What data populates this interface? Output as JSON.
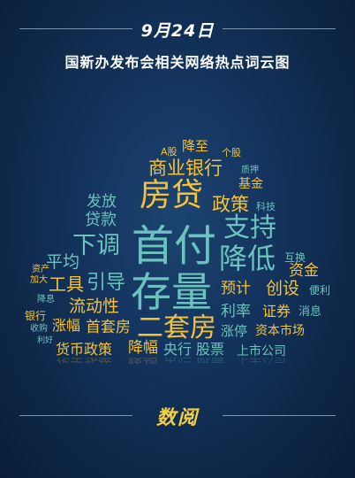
{
  "header": {
    "date": "9月24日",
    "title": "国新办发布会相关网络热点词云图"
  },
  "word_cloud": [
    {
      "text": "首付",
      "color": "teal"
    },
    {
      "text": "存量",
      "color": "teal"
    },
    {
      "text": "房贷",
      "color": "yellow"
    },
    {
      "text": "下调",
      "color": "teal"
    },
    {
      "text": "支持",
      "color": "teal"
    },
    {
      "text": "降低",
      "color": "teal"
    },
    {
      "text": "二套房",
      "color": "yellow"
    },
    {
      "text": "商业银行",
      "color": "yellow"
    },
    {
      "text": "政策",
      "color": "yellow"
    },
    {
      "text": "引导",
      "color": "teal"
    },
    {
      "text": "工具",
      "color": "yellow"
    },
    {
      "text": "平均",
      "color": "teal"
    },
    {
      "text": "发放",
      "color": "teal"
    },
    {
      "text": "贷款",
      "color": "teal"
    },
    {
      "text": "流动性",
      "color": "yellow"
    },
    {
      "text": "首套房",
      "color": "yellow"
    },
    {
      "text": "涨幅",
      "color": "yellow"
    },
    {
      "text": "降幅",
      "color": "yellow"
    },
    {
      "text": "货币政策",
      "color": "yellow"
    },
    {
      "text": "央行",
      "color": "teal"
    },
    {
      "text": "股票",
      "color": "teal"
    },
    {
      "text": "上市公司",
      "color": "teal"
    },
    {
      "text": "资本市场",
      "color": "yellow"
    },
    {
      "text": "涨停",
      "color": "teal"
    },
    {
      "text": "利率",
      "color": "teal"
    },
    {
      "text": "证券",
      "color": "yellow"
    },
    {
      "text": "消息",
      "color": "teal"
    },
    {
      "text": "预计",
      "color": "yellow"
    },
    {
      "text": "创设",
      "color": "yellow"
    },
    {
      "text": "资金",
      "color": "yellow"
    },
    {
      "text": "便利",
      "color": "teal"
    },
    {
      "text": "互换",
      "color": "teal"
    },
    {
      "text": "基金",
      "color": "yellow"
    },
    {
      "text": "科技",
      "color": "teal"
    },
    {
      "text": "质押",
      "color": "teal"
    },
    {
      "text": "个股",
      "color": "yellow"
    },
    {
      "text": "降至",
      "color": "yellow"
    },
    {
      "text": "A股",
      "color": "yellow"
    },
    {
      "text": "资产",
      "color": "yellow"
    },
    {
      "text": "加大",
      "color": "yellow"
    },
    {
      "text": "降息",
      "color": "teal"
    },
    {
      "text": "银行",
      "color": "yellow"
    },
    {
      "text": "收购",
      "color": "teal"
    },
    {
      "text": "利好",
      "color": "teal"
    }
  ],
  "footer": {
    "logo_text": "数阅"
  }
}
